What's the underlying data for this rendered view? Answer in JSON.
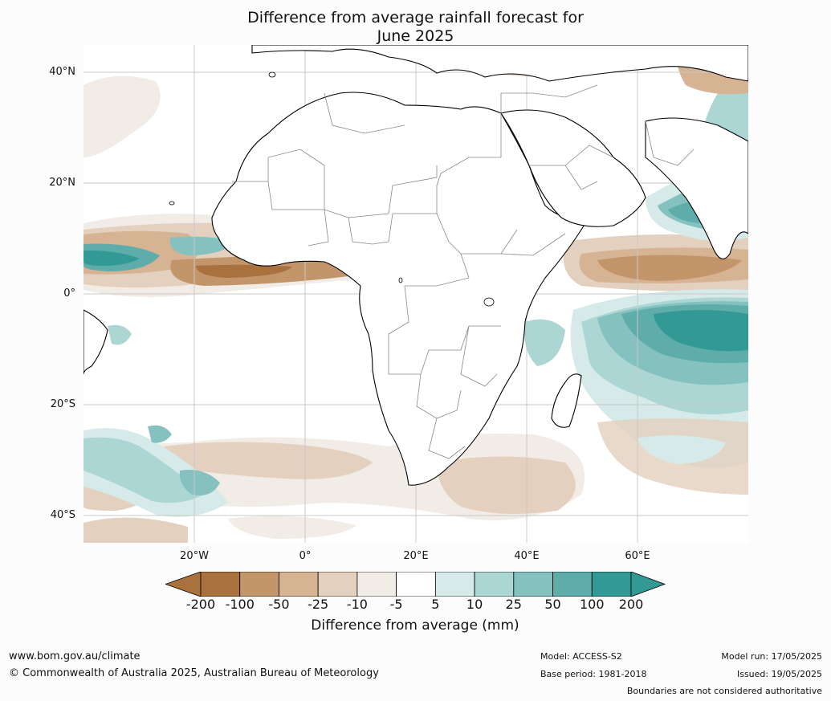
{
  "title_line1": "Difference from average rainfall forecast for",
  "title_line2": "June 2025",
  "lat_labels": [
    "40°N",
    "20°N",
    "0°",
    "20°S",
    "40°S"
  ],
  "lon_labels": [
    "20°W",
    "0°",
    "20°E",
    "40°E",
    "60°E"
  ],
  "colorbar": {
    "ticks": [
      "-200",
      "-100",
      "-50",
      "-25",
      "-10",
      "-5",
      "5",
      "10",
      "25",
      "50",
      "100",
      "200"
    ],
    "colors": [
      "#a8713e",
      "#c3956b",
      "#d5b393",
      "#e4d0be",
      "#f2ece6",
      "#ffffff",
      "#d6ebe9",
      "#acd6d3",
      "#85c2bf",
      "#5eadaa",
      "#339995"
    ],
    "label": "Difference from average (mm)"
  },
  "footer": {
    "website": "www.bom.gov.au/climate",
    "copyright": "© Commonwealth of Australia 2025, Australian Bureau of Meteorology",
    "model": "Model: ACCESS-S2",
    "base_period": "Base period: 1981-2018",
    "model_run": "Model run: 17/05/2025",
    "issued": "Issued: 19/05/2025",
    "disclaimer": "Boundaries are not considered authoritative"
  }
}
